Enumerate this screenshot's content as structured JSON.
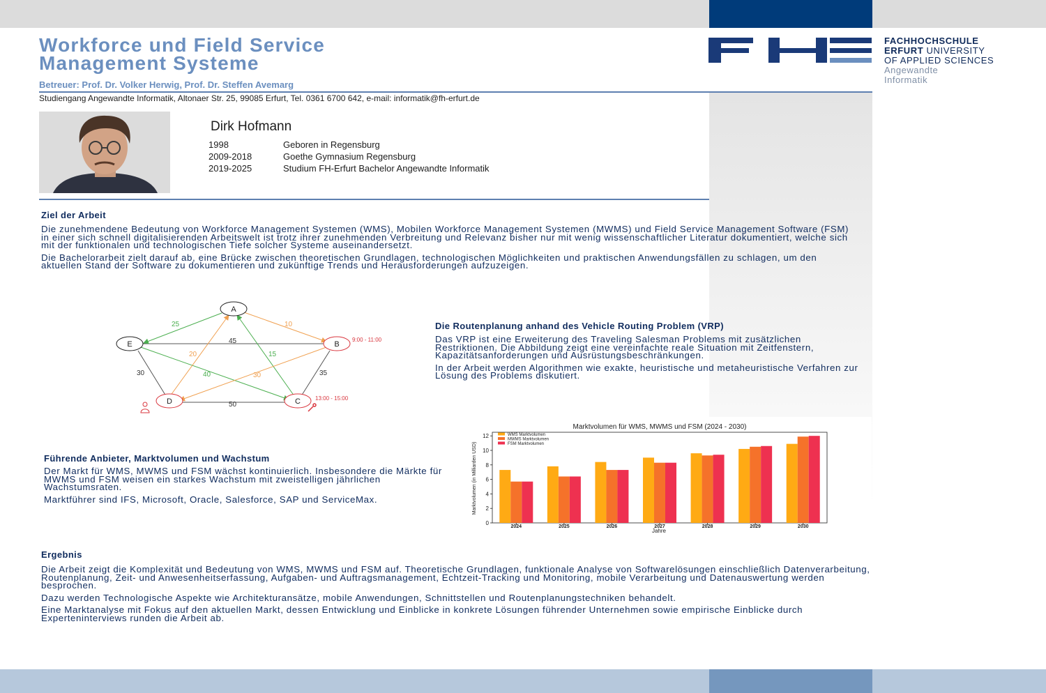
{
  "header": {
    "title_line1": "Workforce und Field Service",
    "title_line2": "Management Systeme",
    "supervisor": "Betreuer: Prof. Dr. Volker Herwig, Prof. Dr. Steffen Avemarg",
    "contact": "Studiengang Angewandte Informatik, Altonaer Str. 25, 99085 Erfurt, Tel. 0361 6700 642, e-mail: informatik@fh-erfurt.de"
  },
  "logo": {
    "letters": "FHE",
    "line1": "FACHHOCHSCHULE",
    "line2_bold": "ERFURT",
    "line2_rest": " UNIVERSITY",
    "line3": "OF APPLIED SCIENCES",
    "line4": "Angewandte",
    "line5": "Informatik",
    "color": "#1a3a78"
  },
  "profile": {
    "name": "Dirk Hofmann",
    "cv": [
      {
        "year": "1998",
        "text": "Geboren in Regensburg"
      },
      {
        "year": "2009-2018",
        "text": "Goethe Gymnasium Regensburg"
      },
      {
        "year": "2019-2025",
        "text": "Studium FH-Erfurt Bachelor Angewandte Informatik"
      }
    ]
  },
  "goal": {
    "heading": "Ziel der Arbeit",
    "p1": "Die zunehmendene Bedeutung von Workforce Management Systemen (WMS), Mobilen Workforce Management Systemen (MWMS) und Field Service Management Software (FSM) in einer sich schnell digitalisierenden Arbeitswelt ist trotz ihrer zunehmenden Verbreitung und Relevanz bisher nur mit wenig wissenschaftlicher Literatur dokumentiert, welche sich mit der funktionalen und technologischen Tiefe solcher Systeme auseinandersetzt.",
    "p2": "Die Bachelorarbeit zielt darauf ab, eine Brücke zwischen theoretischen Grundlagen, technologischen Möglichkeiten und praktischen Anwendungsfällen zu schlagen, um den aktuellen Stand der Software zu dokumentieren und zukünftige Trends und Herausforderungen aufzuzeigen."
  },
  "graph": {
    "nodes": {
      "A": "A",
      "B": "B",
      "C": "C",
      "D": "D",
      "E": "E"
    },
    "weights": {
      "AE": "25",
      "AB": "10",
      "EB": "45",
      "DA": "20",
      "CA": "15",
      "EC": "40",
      "BD": "30",
      "ED": "30",
      "BC": "35",
      "DC": "50"
    },
    "window_b": "9:00 - 11:00",
    "window_c": "13:00 - 15:00",
    "colors": {
      "green": "#4caf50",
      "orange": "#f0a050",
      "gray": "#555555",
      "red": "#d9363e"
    }
  },
  "vrp": {
    "heading": "Die Routenplanung anhand des Vehicle Routing Problem (VRP)",
    "p1": "Das VRP ist eine Erweiterung des Traveling Salesman Problems mit zusätzlichen Restriktionen. Die Abbildung zeigt eine vereinfachte reale Situation mit Zeitfenstern, Kapazitätsanforderungen und Ausrüstungsbeschränkungen.",
    "p2": "In der Arbeit werden Algorithmen wie exakte, heuristische und metaheuristische Verfahren zur Lösung des Problems diskutiert."
  },
  "market": {
    "heading": "Führende Anbieter, Marktvolumen und Wachstum",
    "p1": "Der Markt für WMS, MWMS und FSM wächst kontinuierlich. Insbesondere die Märkte für MWMS und FSM weisen ein starkes Wachstum mit zweistelligen jährlichen Wachstumsraten.",
    "p2": "Marktführer sind IFS, Microsoft, Oracle, Salesforce, SAP und ServiceMax."
  },
  "chart_data": {
    "type": "bar",
    "title": "Marktvolumen für WMS, MWMS und FSM (2024 - 2030)",
    "xlabel": "Jahre",
    "ylabel": "Marktvolumen (in Milliarden USD)",
    "categories": [
      "2024",
      "2025",
      "2026",
      "2027",
      "2028",
      "2029",
      "2030"
    ],
    "ylim": [
      0,
      12.5
    ],
    "yticks": [
      0,
      2,
      4,
      6,
      8,
      10,
      12
    ],
    "legend": "top-left",
    "series": [
      {
        "name": "WMS Marktvolumen",
        "color": "#ffaa14",
        "values": [
          7.3,
          7.8,
          8.4,
          9.0,
          9.6,
          10.2,
          10.9
        ]
      },
      {
        "name": "MWMS Marktvolumen",
        "color": "#f5722a",
        "values": [
          5.7,
          6.4,
          7.3,
          8.3,
          9.3,
          10.5,
          11.9
        ]
      },
      {
        "name": "FSM Marktvolumen",
        "color": "#ee3150",
        "values": [
          5.7,
          6.4,
          7.3,
          8.3,
          9.4,
          10.6,
          12.0
        ]
      }
    ]
  },
  "result": {
    "heading": "Ergebnis",
    "p1": "Die Arbeit zeigt die Komplexität und Bedeutung von WMS, MWMS und FSM auf. Theoretische Grundlagen, funktionale Analyse von Softwarelösungen einschließlich Datenverarbeitung, Routenplanung, Zeit- und Anwesenheitserfassung, Aufgaben- und Auftragsmanagement, Echtzeit-Tracking und Monitoring, mobile Verarbeitung und Datenauswertung werden besprochen.",
    "p2": "Dazu werden Technologische Aspekte wie Architekturansätze, mobile Anwendungen, Schnittstellen und Routenplanungstechniken behandelt.",
    "p3": "Eine Marktanalyse mit Fokus auf den aktuellen Markt, dessen Entwicklung und Einblicke in konkrete Lösungen führender Unternehmen sowie empirische Einblicke durch Experteninterviews runden die Arbeit ab."
  }
}
